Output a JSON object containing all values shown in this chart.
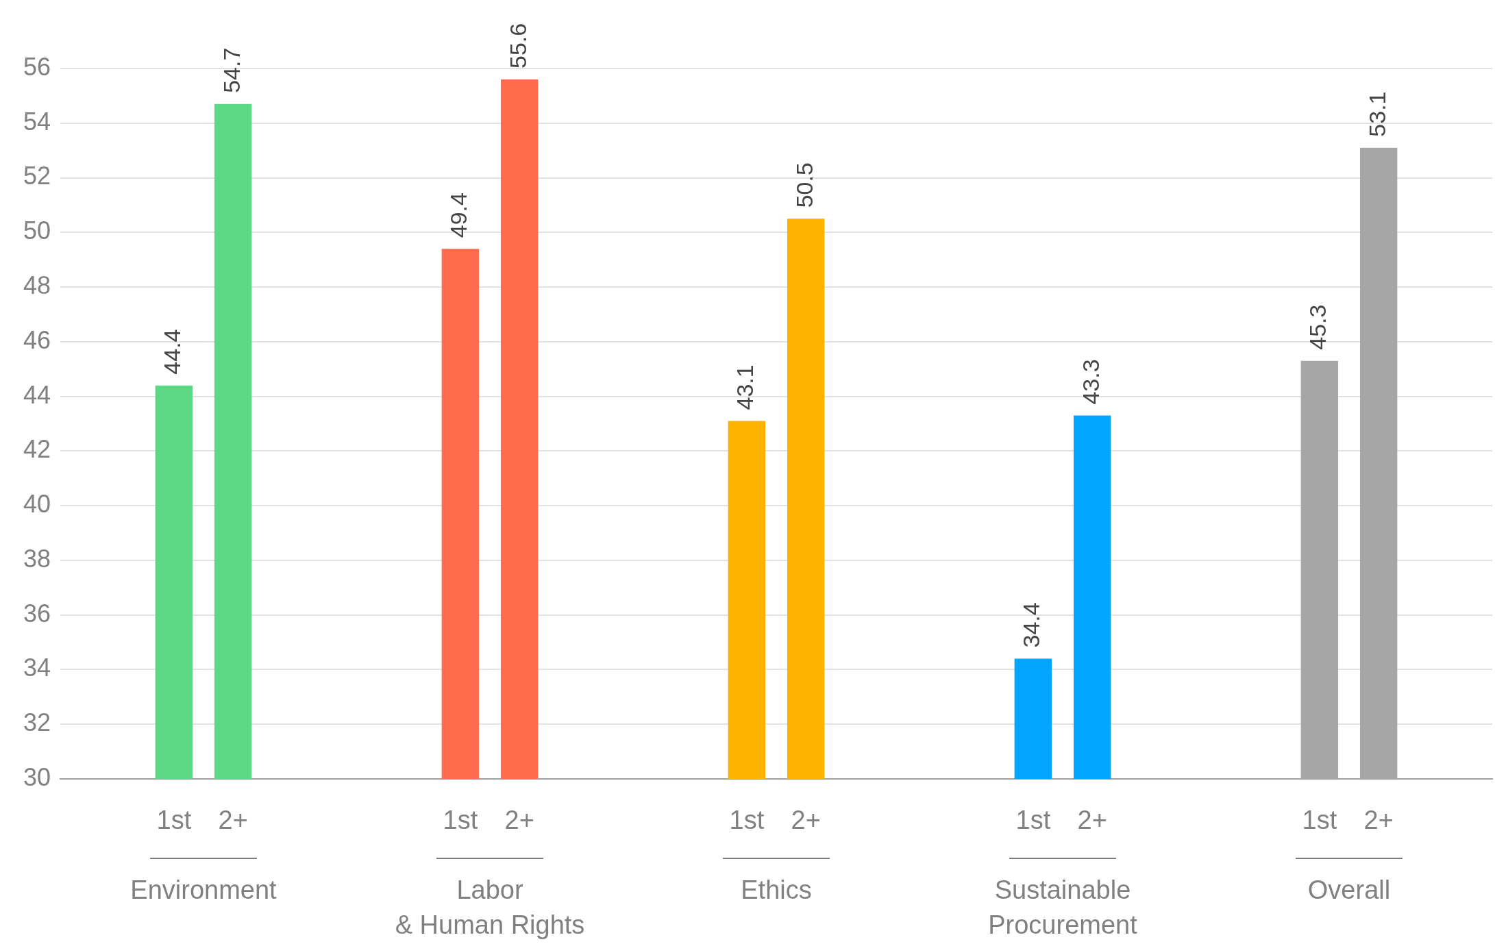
{
  "chart_data": {
    "type": "bar",
    "categories": [
      "Environment",
      "Labor\n& Human Rights",
      "Ethics",
      "Sustainable\nProcurement",
      "Overall"
    ],
    "series": [
      {
        "name": "1st",
        "colors": [
          "#5dd986",
          "#ff6b4d",
          "#fdb300",
          "#00a6fb",
          "#a6a6a6"
        ],
        "values": [
          44.4,
          49.4,
          43.1,
          34.4,
          45.3
        ]
      },
      {
        "name": "2+",
        "colors": [
          "#5dd986",
          "#ff6b4d",
          "#fdb300",
          "#00a6fb",
          "#a6a6a6"
        ],
        "values": [
          54.7,
          55.6,
          50.5,
          43.3,
          53.1
        ]
      }
    ],
    "ylim": [
      30,
      56
    ],
    "yticks": [
      30,
      32,
      34,
      36,
      38,
      40,
      42,
      44,
      46,
      48,
      50,
      52,
      54,
      56
    ],
    "grid": "y",
    "legend": false,
    "data_labels": true
  }
}
